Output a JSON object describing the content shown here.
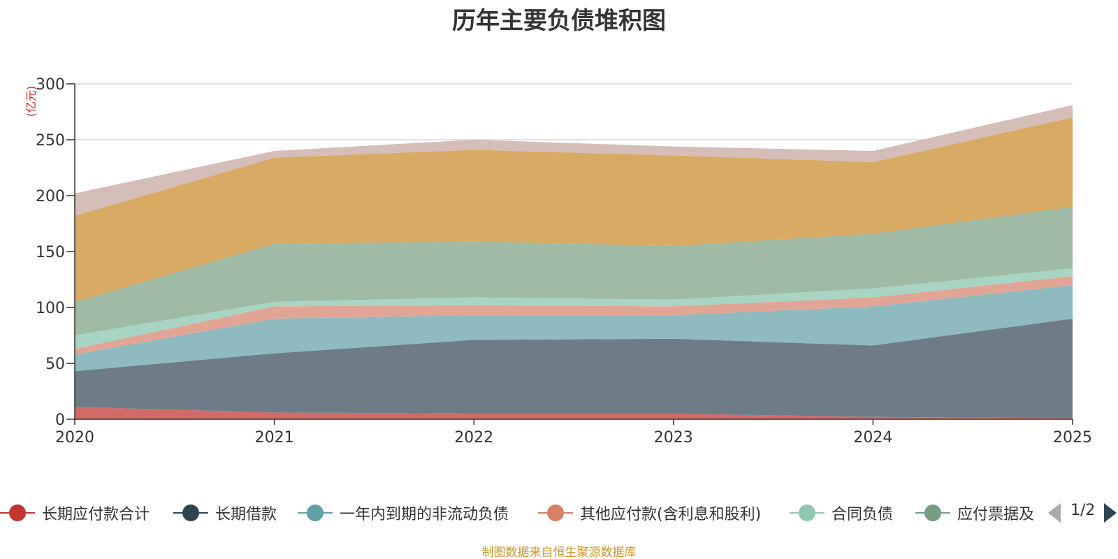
{
  "chart_data": {
    "type": "area",
    "title": "历年主要负债堆积图",
    "ylabel": "(亿元)",
    "xlabel": "",
    "stacked": true,
    "x": [
      "2020",
      "2021",
      "2022",
      "2023",
      "2024",
      "2025"
    ],
    "ylim": [
      0,
      300
    ],
    "yticks": [
      "0",
      "50",
      "100",
      "150",
      "200",
      "250",
      "300"
    ],
    "grid": true,
    "legend_position": "bottom",
    "series": [
      {
        "name": "长期应付款合计",
        "color": "#d36a6a",
        "legend_color": "#c23531",
        "values": [
          11,
          6,
          5,
          5,
          2,
          1
        ]
      },
      {
        "name": "长期借款",
        "color": "#6e7c87",
        "legend_color": "#2f4554",
        "values": [
          32,
          53,
          66,
          67,
          64,
          89
        ]
      },
      {
        "name": "一年内到期的非流动负债",
        "color": "#8fbac0",
        "legend_color": "#61a0a8",
        "values": [
          15,
          31,
          22,
          21,
          35,
          30
        ]
      },
      {
        "name": "其他应付款(含利息和股利)",
        "color": "#e1a596",
        "legend_color": "#d48265",
        "values": [
          5,
          11,
          9,
          8,
          8,
          8
        ]
      },
      {
        "name": "合同负债",
        "color": "#a8d5c3",
        "legend_color": "#91c7ae",
        "values": [
          12,
          4,
          7,
          6,
          8,
          7
        ]
      },
      {
        "name": "应付票据及应付账款",
        "color": "#9fbaa5",
        "legend_color": "#749f83",
        "values": [
          30,
          52,
          50,
          48,
          49,
          55
        ]
      },
      {
        "name": "",
        "color": "#d9aa64",
        "values": [
          77,
          77,
          82,
          81,
          64,
          80
        ]
      },
      {
        "name": "",
        "color": "#d5bdb8",
        "values": [
          20,
          6,
          9,
          8,
          10,
          11
        ]
      }
    ]
  },
  "legend": {
    "items": [
      {
        "label": "长期应付款合计",
        "color": "#c23531"
      },
      {
        "label": "长期借款",
        "color": "#2f4554"
      },
      {
        "label": "一年内到期的非流动负债",
        "color": "#61a0a8"
      },
      {
        "label": "其他应付款(含利息和股利)",
        "color": "#d48265"
      },
      {
        "label": "合同负债",
        "color": "#91c7ae"
      },
      {
        "label": "应付票据及应付账款",
        "color": "#749f83"
      }
    ],
    "page_text": "1/2"
  },
  "footer": {
    "source": "制图数据来自恒生聚源数据库"
  }
}
